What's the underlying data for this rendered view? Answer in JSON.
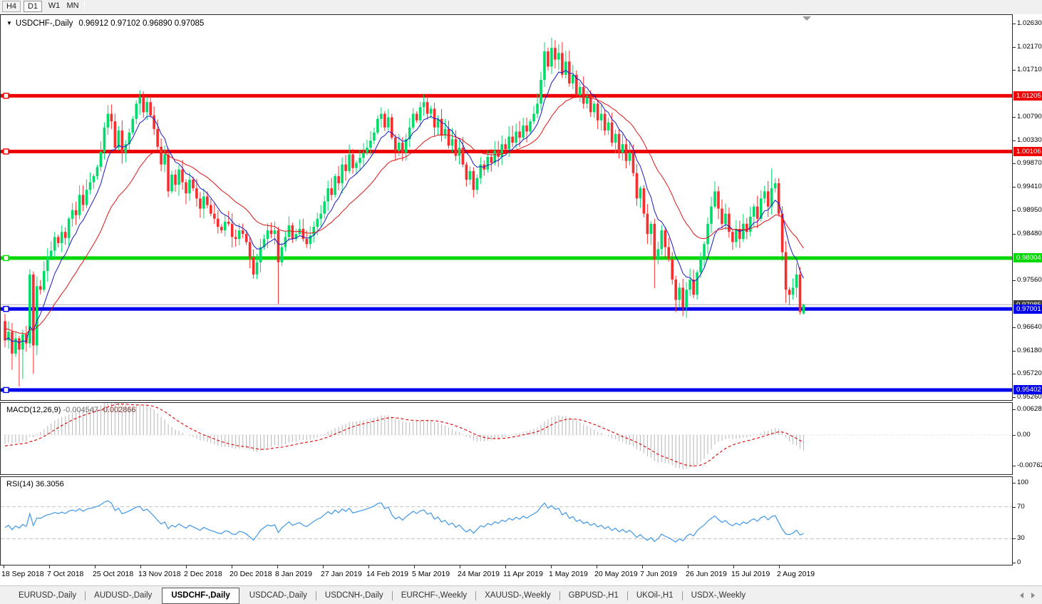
{
  "toolbar": {
    "periods": [
      "H4",
      "D1",
      "W1",
      "MN"
    ],
    "active": "D1"
  },
  "title": {
    "symbol": "USDCHF-,Daily",
    "ohlc": "0.96912 0.97102 0.96890 0.97085"
  },
  "panes": {
    "macd_label": "MACD(12,26,9)",
    "macd_value1": "-0.004547",
    "macd_value2": "-0.002866",
    "rsi_label": "RSI(14)",
    "rsi_value": "36.3056"
  },
  "price_axis": {
    "ticks": [
      {
        "label": "1.02630",
        "price": 1.0263
      },
      {
        "label": "1.02170",
        "price": 1.0217
      },
      {
        "label": "1.01710",
        "price": 1.0171
      },
      {
        "label": "1.00790",
        "price": 1.0079
      },
      {
        "label": "1.00330",
        "price": 1.0033
      },
      {
        "label": "0.99870",
        "price": 0.9987
      },
      {
        "label": "0.99410",
        "price": 0.9941
      },
      {
        "label": "0.98950",
        "price": 0.9895
      },
      {
        "label": "0.98480",
        "price": 0.9848
      },
      {
        "label": "0.97560",
        "price": 0.9756
      },
      {
        "label": "0.96640",
        "price": 0.9664
      },
      {
        "label": "0.96180",
        "price": 0.9618
      },
      {
        "label": "0.95720",
        "price": 0.9572
      },
      {
        "label": "0.95260",
        "price": 0.9526
      }
    ],
    "badges": [
      {
        "label": "1.01205",
        "price": 1.01205,
        "color": "#ee0000"
      },
      {
        "label": "1.00106",
        "price": 1.00106,
        "color": "#ee0000"
      },
      {
        "label": "0.98004",
        "price": 0.98004,
        "color": "#00d800"
      },
      {
        "label": "0.97001",
        "price": 0.97001,
        "color": "#0000ee"
      },
      {
        "label": "0.95402",
        "price": 0.95402,
        "color": "#0000ee"
      }
    ],
    "current": {
      "label": "0.97085",
      "price": 0.97085,
      "color": "#3a3a3a"
    }
  },
  "macd_axis": {
    "ticks": [
      {
        "label": "0.006286",
        "v": 0.006286
      },
      {
        "label": "0.00",
        "v": 0
      },
      {
        "label": "-0.00762",
        "v": -0.00762
      }
    ]
  },
  "rsi_axis": {
    "ticks": [
      {
        "label": "100",
        "v": 100
      },
      {
        "label": "70",
        "v": 70
      },
      {
        "label": "30",
        "v": 30
      },
      {
        "label": "0",
        "v": 0
      }
    ]
  },
  "date_axis": {
    "labels": [
      "18 Sep 2018",
      "7 Oct 2018",
      "25 Oct 2018",
      "13 Nov 2018",
      "2 Dec 2018",
      "20 Dec 2018",
      "8 Jan 2019",
      "27 Jan 2019",
      "14 Feb 2019",
      "5 Mar 2019",
      "24 Mar 2019",
      "11 Apr 2019",
      "1 May 2019",
      "20 May 2019",
      "7 Jun 2019",
      "26 Jun 2019",
      "15 Jul 2019",
      "2 Aug 2019"
    ]
  },
  "tabs": {
    "items": [
      "EURUSD-,Daily",
      "AUDUSD-,Daily",
      "USDCHF-,Daily",
      "USDCAD-,Daily",
      "USDCNH-,Daily",
      "EURCHF-,Weekly",
      "XAUUSD-,Weekly",
      "GBPUSD-,H1",
      "UKOil-,H1",
      "USDX-,Weekly"
    ],
    "active_index": 2
  },
  "chart_data": {
    "type": "candlestick",
    "symbol": "USDCHF",
    "timeframe": "Daily",
    "open_first": 0.9676,
    "closes": [
      0.9638,
      0.9655,
      0.9612,
      0.9642,
      0.962,
      0.965,
      0.9632,
      0.9768,
      0.9628,
      0.9745,
      0.9738,
      0.9775,
      0.9802,
      0.9815,
      0.9842,
      0.983,
      0.9852,
      0.984,
      0.9878,
      0.9895,
      0.9885,
      0.9925,
      0.9905,
      0.9935,
      0.995,
      0.9962,
      0.998,
      1.001,
      1.0058,
      1.0085,
      1.007,
      1.0018,
      1.0052,
      1.0008,
      1.0025,
      1.0048,
      1.0075,
      1.0105,
      1.0118,
      1.0088,
      1.0108,
      1.0082,
      1.0055,
      1.002,
      0.9985,
      1.0005,
      0.9932,
      0.9965,
      0.9945,
      0.9975,
      0.995,
      0.9928,
      0.9955,
      0.9938,
      0.9918,
      0.9898,
      0.9922,
      0.9905,
      0.9888,
      0.9878,
      0.9862,
      0.9855,
      0.9872,
      0.9868,
      0.9842,
      0.9838,
      0.9855,
      0.9848,
      0.9832,
      0.9802,
      0.9768,
      0.9792,
      0.9822,
      0.9838,
      0.9855,
      0.9848,
      0.9855,
      0.9792,
      0.9822,
      0.9842,
      0.9865,
      0.9838,
      0.9848,
      0.9858,
      0.9838,
      0.9828,
      0.9845,
      0.9862,
      0.9878,
      0.9888,
      0.9912,
      0.9938,
      0.9925,
      0.9962,
      0.9948,
      0.9985,
      0.9972,
      1.0005,
      0.9978,
      0.9988,
      0.9998,
      1.0008,
      1.0018,
      1.0032,
      1.0048,
      1.0075,
      1.0085,
      1.0058,
      1.0078,
      1.0038,
      1.0012,
      1.0028,
      1.0008,
      1.0035,
      1.0058,
      1.0085,
      1.0072,
      1.0098,
      1.0108,
      1.0085,
      1.0095,
      1.0058,
      1.0075,
      1.0042,
      1.0055,
      1.0022,
      1.0035,
      1.0002,
      1.0018,
      0.9985,
      0.9955,
      0.9972,
      0.9935,
      0.9958,
      0.9985,
      0.9975,
      1.0,
      0.9988,
      1.0012,
      1.0,
      1.0025,
      1.0015,
      1.004,
      1.0028,
      1.005,
      1.0038,
      1.0062,
      1.005,
      1.007,
      1.0085,
      1.0105,
      1.0152,
      1.0208,
      1.0178,
      1.0215,
      1.0192,
      1.0205,
      1.0162,
      1.0188,
      1.0145,
      1.0162,
      1.0122,
      1.0138,
      1.0105,
      1.012,
      1.0088,
      1.0105,
      1.0072,
      1.0085,
      1.0052,
      1.0068,
      1.0028,
      1.0045,
      1.0008,
      1.0025,
      0.9992,
      1.0008,
      0.9968,
      0.9918,
      0.9938,
      0.9888,
      0.9848,
      0.9868,
      0.9798,
      0.9818,
      0.9855,
      0.9822,
      0.9798,
      0.9758,
      0.9718,
      0.9742,
      0.9703,
      0.9738,
      0.9758,
      0.9728,
      0.9772,
      0.9802,
      0.9828,
      0.9868,
      0.9902,
      0.9932,
      0.9898,
      0.9868,
      0.9888,
      0.9852,
      0.9832,
      0.9858,
      0.9838,
      0.9868,
      0.9852,
      0.9882,
      0.9902,
      0.9878,
      0.9918,
      0.9932,
      0.9902,
      0.9938,
      0.9948,
      0.9888,
      0.9812,
      0.9738,
      0.9728,
      0.9742,
      0.9768,
      0.9694,
      0.97085
    ],
    "pre_history": [
      0.975,
      0.9768,
      0.9735,
      0.9752,
      0.972,
      0.9738,
      0.9705,
      0.9722,
      0.969,
      0.9705,
      0.9672,
      0.9688,
      0.9655,
      0.967,
      0.9638,
      0.9652,
      0.9622,
      0.9636,
      0.961,
      0.9625,
      0.96,
      0.9618,
      0.959,
      0.963,
      0.9655,
      0.9676
    ],
    "wick_overrides": {
      "2": {
        "low": 0.958
      },
      "4": {
        "low": 0.9547
      },
      "5": {
        "low": 0.9562
      },
      "8": {
        "low": 0.9572
      },
      "77": {
        "low": 0.971
      },
      "106": {
        "high": 1.0098
      },
      "118": {
        "high": 1.0123
      },
      "152": {
        "high": 1.0226
      },
      "154": {
        "high": 1.0235
      },
      "183": {
        "low": 0.9741
      },
      "189": {
        "low": 0.9694
      },
      "191": {
        "low": 0.9686
      },
      "216": {
        "high": 0.9977
      },
      "220": {
        "low": 0.9712
      },
      "224": {
        "low": 0.9689
      }
    },
    "last_bar": {
      "open": 0.96912,
      "high": 0.97102,
      "low": 0.9689,
      "close": 0.97085
    },
    "sr_levels": [
      {
        "price": 1.01205,
        "color": "#ee0000"
      },
      {
        "price": 1.00106,
        "color": "#ee0000"
      },
      {
        "price": 0.98004,
        "color": "#00d800"
      },
      {
        "price": 0.97001,
        "color": "#0000ee"
      },
      {
        "price": 0.95402,
        "color": "#0000ee"
      }
    ],
    "current_price": 0.97085,
    "ma": [
      {
        "period": 8,
        "color": "#1717c8"
      },
      {
        "period": 24,
        "color": "#e01414"
      }
    ],
    "macd": {
      "fast": 12,
      "slow": 26,
      "signal": 9
    },
    "rsi": {
      "period": 14
    },
    "price_range": {
      "top": 1.0263,
      "bottom": 0.9526
    },
    "colors": {
      "up": "#00dc6a",
      "down": "#f82e2e",
      "macd_hist": "#bcbcbc",
      "macd_signal": "#e00000",
      "rsi_line": "#3f97e8",
      "current_line": "#b0b0b0"
    }
  }
}
